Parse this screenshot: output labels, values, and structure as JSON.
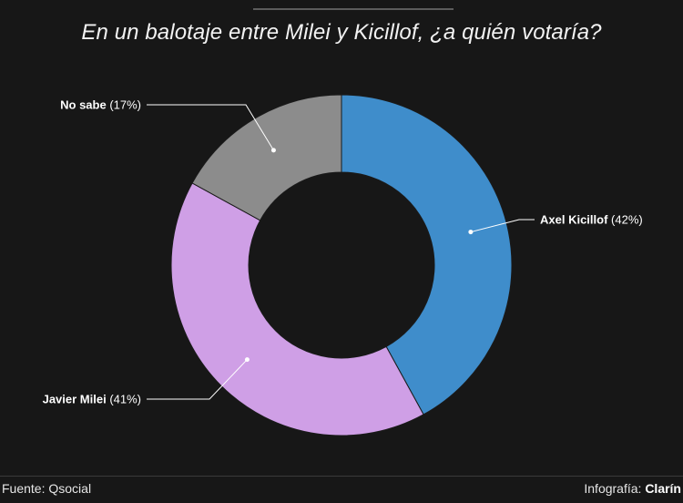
{
  "header": {
    "title": "En un balotaje entre Milei y Kicillof, ¿a quién votaría?"
  },
  "chart_data": {
    "type": "pie",
    "donut": true,
    "title": "En un balotaje entre Milei y Kicillof, ¿a quién votaría?",
    "categories": [
      "Axel Kicillof",
      "Javier Milei",
      "No sabe"
    ],
    "values": [
      42,
      41,
      17
    ],
    "value_labels": [
      "(42%)",
      "(41%)",
      "(17%)"
    ],
    "colors": [
      "#3f8dcb",
      "#cf9fe6",
      "#8c8c8c"
    ]
  },
  "footer": {
    "source": "Fuente: Qsocial",
    "credit_prefix": "Infografía: ",
    "credit_brand": "Clarín"
  }
}
